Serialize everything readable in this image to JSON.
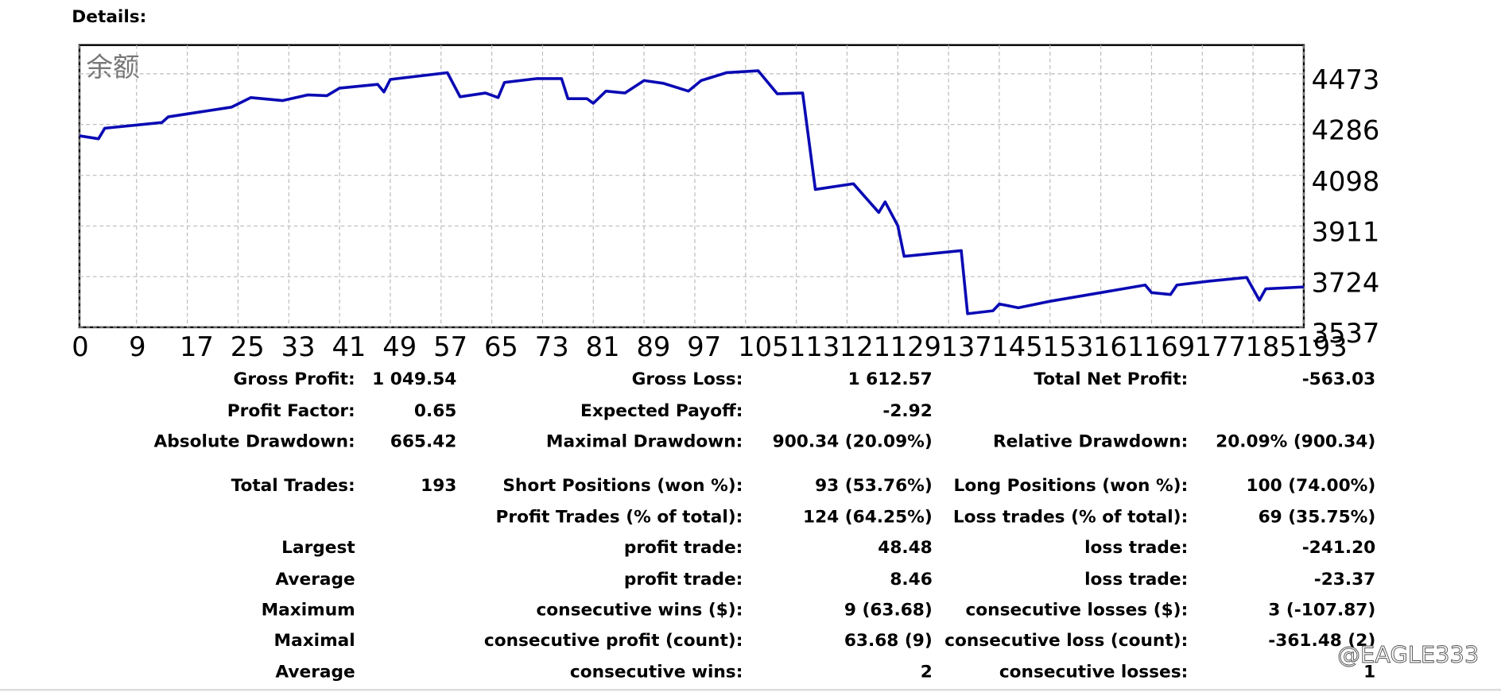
{
  "heading": "Details:",
  "chart_data": {
    "type": "line",
    "label": "余额",
    "x": [
      0,
      3,
      4,
      13,
      14,
      24,
      27,
      32,
      36,
      39,
      41,
      47,
      48,
      49,
      58,
      60,
      64,
      66,
      67,
      72,
      76,
      77,
      80,
      81,
      83,
      86,
      89,
      92,
      96,
      98,
      102,
      107,
      110,
      114,
      116,
      122,
      126,
      127,
      129,
      130,
      139,
      140,
      144,
      145,
      148,
      153,
      161,
      168,
      169,
      172,
      173,
      178,
      184,
      186,
      187,
      193
    ],
    "series": [
      {
        "color": "#0a0ab4",
        "values": [
          4244,
          4233,
          4272,
          4293,
          4314,
          4350,
          4385,
          4374,
          4395,
          4392,
          4420,
          4434,
          4406,
          4452,
          4477,
          4388,
          4402,
          4385,
          4441,
          4455,
          4455,
          4381,
          4381,
          4364,
          4409,
          4402,
          4448,
          4438,
          4409,
          4448,
          4477,
          4484,
          4399,
          4402,
          4046,
          4067,
          3961,
          4000,
          3912,
          3799,
          3820,
          3587,
          3598,
          3623,
          3609,
          3633,
          3665,
          3693,
          3665,
          3658,
          3693,
          3707,
          3721,
          3637,
          3679,
          3686
        ]
      }
    ],
    "xlim": [
      0,
      193
    ],
    "xticks": [
      0,
      9,
      17,
      25,
      33,
      41,
      49,
      57,
      65,
      73,
      81,
      89,
      97,
      105,
      113,
      121,
      129,
      137,
      145,
      153,
      161,
      169,
      177,
      185,
      193
    ],
    "ylim": [
      3537,
      4579
    ],
    "yticks": [
      3537,
      3724,
      3911,
      4098,
      4286,
      4473
    ],
    "grid": true
  },
  "table": {
    "rows": [
      [
        "Gross Profit:",
        "1 049.54",
        "Gross Loss:",
        "1 612.57",
        "Total Net Profit:",
        "-563.03"
      ],
      [
        "Profit Factor:",
        "0.65",
        "Expected Payoff:",
        "-2.92",
        null,
        null
      ],
      [
        "Absolute Drawdown:",
        "665.42",
        "Maximal Drawdown:",
        "900.34 (20.09%)",
        "Relative Drawdown:",
        "20.09% (900.34)"
      ],
      [
        "Total Trades:",
        "193",
        "Short Positions (won %):",
        "93 (53.76%)",
        "Long Positions (won %):",
        "100 (74.00%)"
      ],
      [
        null,
        null,
        "Profit Trades (% of total):",
        "124 (64.25%)",
        "Loss trades (% of total):",
        "69 (35.75%)"
      ],
      [
        "Largest",
        null,
        "profit trade:",
        "48.48",
        "loss trade:",
        "-241.20"
      ],
      [
        "Average",
        null,
        "profit trade:",
        "8.46",
        "loss trade:",
        "-23.37"
      ],
      [
        "Maximum",
        null,
        "consecutive wins ($):",
        "9 (63.68)",
        "consecutive losses ($):",
        "3 (-107.87)"
      ],
      [
        "Maximal",
        null,
        "consecutive profit (count):",
        "63.68 (9)",
        "consecutive loss (count):",
        "-361.48 (2)"
      ],
      [
        "Average",
        null,
        "consecutive wins:",
        "2",
        "consecutive losses:",
        "1"
      ]
    ]
  },
  "watermark": "@EAGLE333"
}
